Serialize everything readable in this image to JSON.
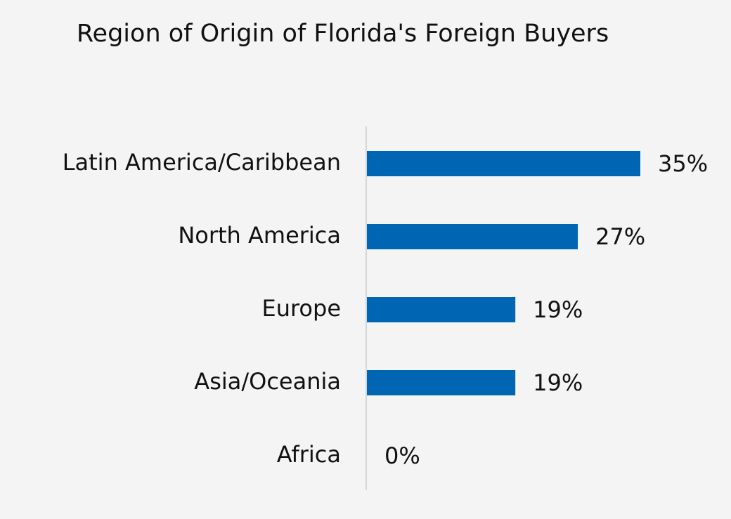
{
  "chart_data": {
    "type": "bar",
    "orientation": "horizontal",
    "title": "Region of Origin of Florida's Foreign Buyers",
    "categories": [
      "Latin America/Caribbean",
      "North America",
      "Europe",
      "Asia/Oceania",
      "Africa"
    ],
    "values": [
      35,
      27,
      19,
      19,
      0
    ],
    "value_labels": [
      "35%",
      "27%",
      "19%",
      "19%",
      "0%"
    ],
    "color": "#0066b3"
  }
}
